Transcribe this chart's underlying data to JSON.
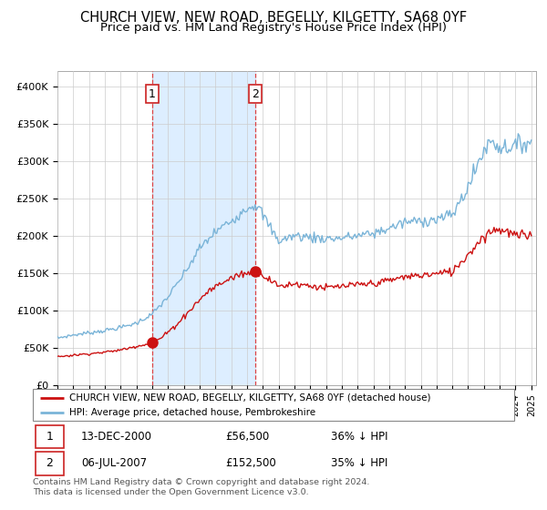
{
  "title": "CHURCH VIEW, NEW ROAD, BEGELLY, KILGETTY, SA68 0YF",
  "subtitle": "Price paid vs. HM Land Registry's House Price Index (HPI)",
  "ylim": [
    0,
    420000
  ],
  "yticks": [
    0,
    50000,
    100000,
    150000,
    200000,
    250000,
    300000,
    350000,
    400000
  ],
  "ytick_labels": [
    "£0",
    "£50K",
    "£100K",
    "£150K",
    "£200K",
    "£250K",
    "£300K",
    "£350K",
    "£400K"
  ],
  "xlim_start": 1995,
  "xlim_end": 2025.3,
  "sale1_t": 2001.0,
  "sale1_p": 56500,
  "sale2_t": 2007.5,
  "sale2_p": 152500,
  "hpi_color": "#7ab4d8",
  "price_color": "#cc1111",
  "vline_color": "#dd4444",
  "shade_color": "#ddeeff",
  "legend_label1": "CHURCH VIEW, NEW ROAD, BEGELLY, KILGETTY, SA68 0YF (detached house)",
  "legend_label2": "HPI: Average price, detached house, Pembrokeshire",
  "ann1_date": "13-DEC-2000",
  "ann1_price": "£56,500",
  "ann1_hpi": "36% ↓ HPI",
  "ann2_date": "06-JUL-2007",
  "ann2_price": "£152,500",
  "ann2_hpi": "35% ↓ HPI",
  "footer": "Contains HM Land Registry data © Crown copyright and database right 2024.\nThis data is licensed under the Open Government Licence v3.0.",
  "bg": "#ffffff",
  "grid_color": "#cccccc",
  "title_fs": 10.5,
  "subtitle_fs": 9.5
}
